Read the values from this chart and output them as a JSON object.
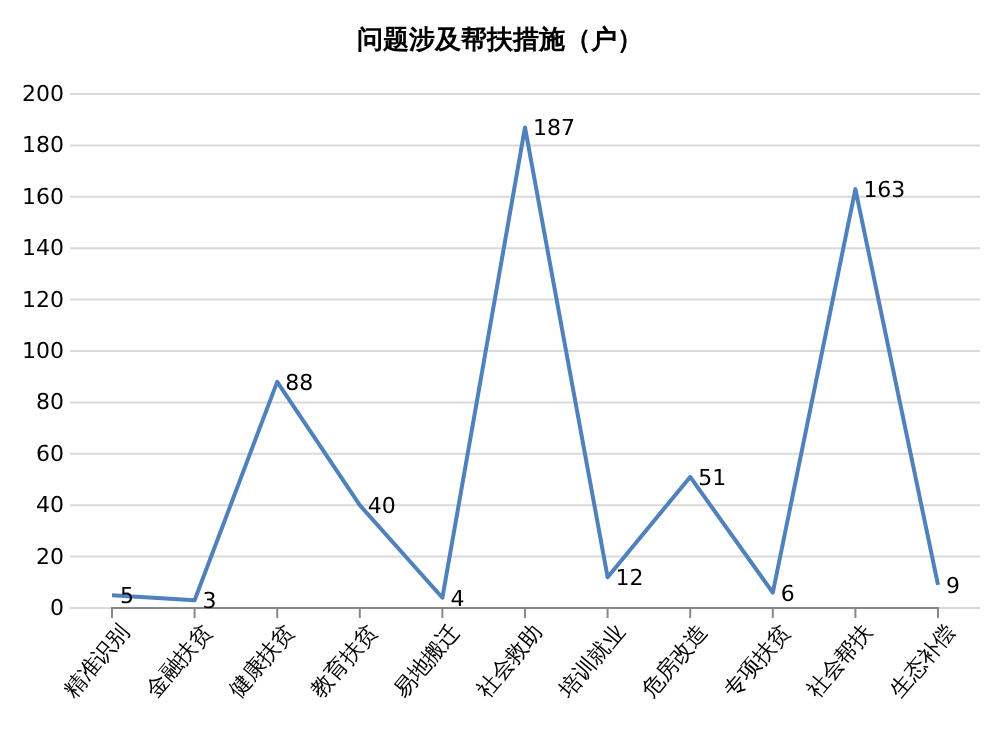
{
  "chart_data": {
    "type": "line",
    "title": "问题涉及帮扶措施（户）",
    "categories": [
      "精准识别",
      "金融扶贫",
      "健康扶贫",
      "教育扶贫",
      "易地搬迁",
      "社会救助",
      "培训就业",
      "危房改造",
      "专项扶贫",
      "社会帮扶",
      "生态补偿"
    ],
    "series": [
      {
        "color": "#4f81bd",
        "values": [
          5,
          3,
          88,
          40,
          4,
          187,
          12,
          51,
          6,
          163,
          9
        ]
      }
    ],
    "ylim": [
      0,
      200
    ],
    "yticks": [
      0,
      20,
      40,
      60,
      80,
      100,
      120,
      140,
      160,
      180,
      200
    ],
    "grid": "y",
    "data_labels": true,
    "marker": "none",
    "line_style": "solid"
  }
}
